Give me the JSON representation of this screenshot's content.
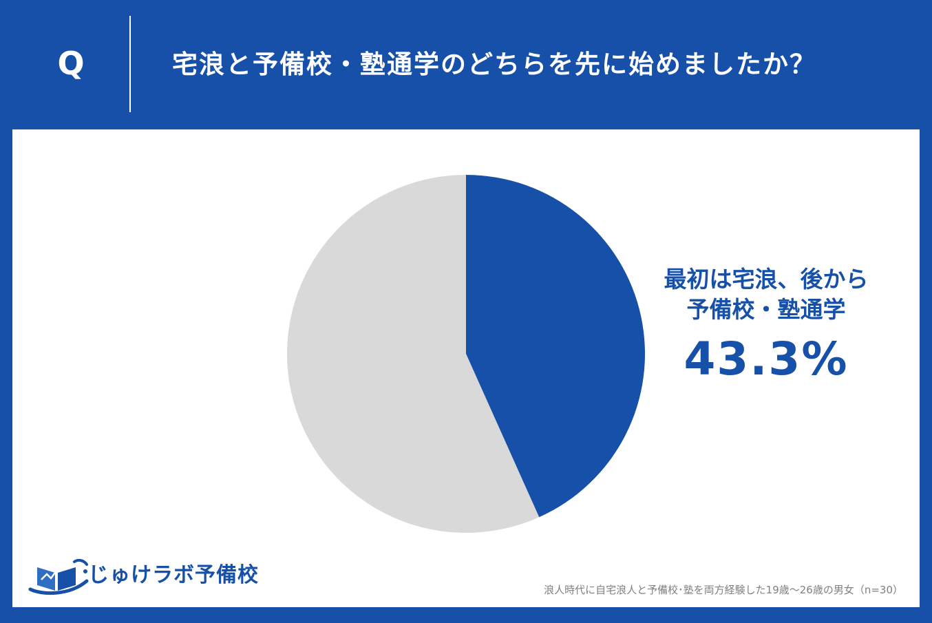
{
  "header": {
    "q_label": "Q",
    "question": "宅浪と予備校・塾通学のどちらを先に始めましたか？"
  },
  "chart_data": {
    "type": "pie",
    "slices": [
      {
        "name": "最初は宅浪、後から予備校・塾通学",
        "value": 43.3,
        "color": "#1750a8"
      },
      {
        "value": 56.7,
        "color": "#d9d9d9"
      }
    ],
    "start": "12 o'clock",
    "direction": "clockwise"
  },
  "callout": {
    "line1": "最初は宅浪、後から",
    "line2": "予備校・塾通学",
    "value": "43.3%"
  },
  "logo": {
    "text": "じゅけラボ予備校"
  },
  "note": "浪人時代に自宅浪人と予備校･塾を両方経験した19歳～26歳の男女（n=30）",
  "colors": {
    "brand": "#1750a8",
    "secondary_slice": "#d9d9d9",
    "background": "#ffffff",
    "note_text": "#808080"
  }
}
